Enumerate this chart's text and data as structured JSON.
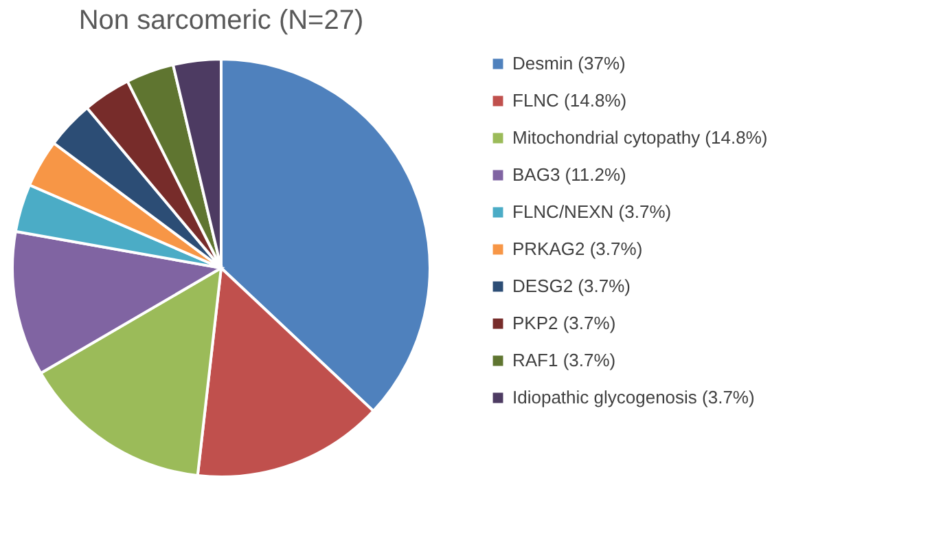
{
  "chart_data": {
    "type": "pie",
    "title": "Non sarcomeric (N=27)",
    "categories": [
      "Desmin (37%)",
      "FLNC (14.8%)",
      "Mitochondrial cytopathy (14.8%)",
      "BAG3 (11.2%)",
      "FLNC/NEXN (3.7%)",
      "PRKAG2 (3.7%)",
      "DESG2 (3.7%)",
      "PKP2 (3.7%)",
      "RAF1 (3.7%)",
      "Idiopathic glycogenosis (3.7%)"
    ],
    "values": [
      37,
      14.8,
      14.8,
      11.2,
      3.7,
      3.7,
      3.7,
      3.7,
      3.7,
      3.7
    ],
    "colors": [
      "#4f81bd",
      "#c0504d",
      "#9bbb59",
      "#8064a2",
      "#4bacc6",
      "#f79646",
      "#2c4d75",
      "#772c2a",
      "#5f7530",
      "#4d3b62"
    ],
    "legend": "right"
  }
}
